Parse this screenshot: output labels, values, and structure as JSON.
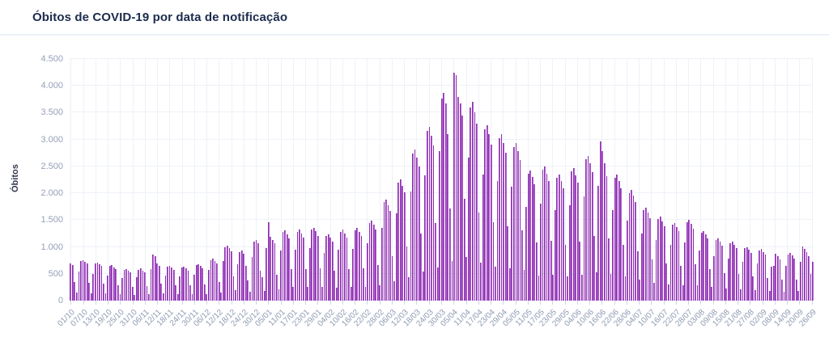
{
  "header": {
    "title": "Óbitos de COVID-19 por data de notificação"
  },
  "chart_data": {
    "type": "bar",
    "title": "Óbitos de COVID-19 por data de notificação",
    "xlabel": "",
    "ylabel": "Óbitos",
    "ylim": [
      0,
      4500
    ],
    "grid": true,
    "legend": "none",
    "bar_color": "#b168d0",
    "bar_edge_color": "#8c2dad",
    "y_tick_values": [
      0,
      500,
      1000,
      1500,
      2000,
      2500,
      3000,
      3500,
      4000,
      4500
    ],
    "y_tick_labels": [
      "0",
      "500",
      "1.000",
      "1.500",
      "2.000",
      "2.500",
      "3.000",
      "3.500",
      "4.000",
      "4.500"
    ],
    "x_tick_every": 6,
    "x_tick_labels": [
      "01/10",
      "07/10",
      "13/10",
      "19/10",
      "25/10",
      "31/10",
      "06/11",
      "12/11",
      "18/11",
      "24/11",
      "30/11",
      "06/12",
      "12/12",
      "18/12",
      "24/12",
      "30/12",
      "05/01",
      "11/01",
      "17/01",
      "23/01",
      "29/01",
      "04/02",
      "10/02",
      "16/02",
      "22/02",
      "28/02",
      "06/03",
      "12/03",
      "18/03",
      "24/03",
      "30/03",
      "05/04",
      "11/04",
      "17/04",
      "23/04",
      "29/04",
      "05/05",
      "11/05",
      "17/05",
      "23/05",
      "29/05",
      "04/06",
      "10/06",
      "16/06",
      "22/06",
      "28/06",
      "04/07",
      "10/07",
      "16/07",
      "22/07",
      "28/07",
      "03/08",
      "09/08",
      "15/08",
      "21/08",
      "27/08",
      "02/09",
      "08/09",
      "14/09",
      "20/09",
      "26/09"
    ],
    "values": [
      700,
      660,
      340,
      150,
      540,
      740,
      760,
      730,
      690,
      330,
      140,
      500,
      690,
      710,
      680,
      640,
      310,
      130,
      470,
      640,
      660,
      620,
      580,
      290,
      120,
      420,
      565,
      585,
      555,
      520,
      260,
      110,
      430,
      575,
      595,
      560,
      530,
      265,
      115,
      590,
      860,
      830,
      700,
      650,
      310,
      135,
      460,
      625,
      645,
      610,
      570,
      285,
      120,
      455,
      615,
      635,
      600,
      560,
      280,
      118,
      485,
      655,
      675,
      640,
      600,
      300,
      128,
      565,
      760,
      785,
      745,
      700,
      350,
      150,
      740,
      1000,
      1030,
      975,
      915,
      455,
      195,
      670,
      905,
      930,
      880,
      640,
      380,
      165,
      815,
      1100,
      1130,
      1065,
      560,
      430,
      185,
      985,
      1465,
      1185,
      1125,
      1075,
      480,
      205,
      940,
      1275,
      1310,
      1240,
      1165,
      580,
      250,
      950,
      1285,
      1320,
      1250,
      1175,
      585,
      255,
      980,
      1325,
      1360,
      1290,
      1210,
      605,
      260,
      890,
      1205,
      1240,
      1175,
      1105,
      550,
      240,
      950,
      1285,
      1320,
      1250,
      1175,
      585,
      255,
      970,
      1315,
      1350,
      1280,
      1200,
      600,
      260,
      1070,
      1450,
      1490,
      1410,
      1325,
      660,
      285,
      1355,
      1830,
      1880,
      1780,
      1675,
      835,
      360,
      1625,
      2200,
      2260,
      2140,
      2010,
      1005,
      435,
      2025,
      2735,
      2810,
      2660,
      2500,
      1250,
      540,
      2335,
      3155,
      3240,
      3070,
      2885,
      1440,
      620,
      2790,
      3770,
      3870,
      3665,
      3100,
      1720,
      745,
      4245,
      4200,
      3800,
      3670,
      3445,
      1890,
      815,
      2665,
      3600,
      3700,
      3500,
      3290,
      1645,
      710,
      2355,
      3185,
      3270,
      3095,
      2910,
      1455,
      625,
      2230,
      3020,
      3100,
      2935,
      2760,
      1380,
      595,
      2115,
      2860,
      2940,
      2785,
      2615,
      1305,
      565,
      1750,
      2365,
      2430,
      2300,
      2165,
      1080,
      465,
      1805,
      2440,
      2505,
      2370,
      2230,
      1115,
      480,
      1690,
      2290,
      2350,
      2225,
      2090,
      1045,
      450,
      1780,
      2405,
      2470,
      2340,
      2200,
      1100,
      475,
      1945,
      2630,
      2700,
      2555,
      2400,
      1200,
      520,
      2135,
      2965,
      2780,
      2560,
      2320,
      1160,
      500,
      1690,
      2290,
      2350,
      2225,
      2090,
      1045,
      450,
      1485,
      2005,
      2060,
      1950,
      1835,
      915,
      395,
      1245,
      1685,
      1730,
      1640,
      1540,
      770,
      330,
      1125,
      1520,
      1560,
      1475,
      1390,
      695,
      300,
      1045,
      1410,
      1450,
      1375,
      1290,
      645,
      280,
      1085,
      1465,
      1505,
      1425,
      1340,
      670,
      290,
      935,
      1265,
      1300,
      1230,
      1155,
      580,
      250,
      835,
      1130,
      1160,
      1100,
      1030,
      515,
      225,
      790,
      1070,
      1100,
      1040,
      980,
      490,
      210,
      720,
      975,
      1000,
      945,
      890,
      445,
      190,
      690,
      935,
      960,
      910,
      855,
      425,
      185,
      625,
      640,
      870,
      825,
      775,
      390,
      170,
      640,
      865,
      890,
      840,
      790,
      395,
      175,
      730,
      1010,
      960,
      900,
      830,
      500,
      720
    ]
  }
}
